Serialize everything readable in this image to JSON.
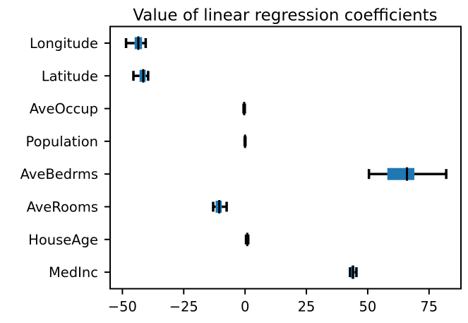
{
  "chart_data": {
    "type": "boxplot",
    "orientation": "horizontal",
    "title": "Value of linear regression coefficients",
    "xlabel": "",
    "ylabel": "",
    "xlim": [
      -55,
      88
    ],
    "xticks": [
      -50,
      -25,
      0,
      25,
      50,
      75
    ],
    "xtick_labels": [
      "−50",
      "−25",
      "0",
      "25",
      "50",
      "75"
    ],
    "grid": false,
    "legend": "none",
    "box_color": "#1f77b4",
    "median_color": "#000000",
    "whisker_color": "#000000",
    "categories": [
      "Longitude",
      "Latitude",
      "AveOccup",
      "Population",
      "AveBedrms",
      "AveRooms",
      "HouseAge",
      "MedInc"
    ],
    "boxes": [
      {
        "label": "Longitude",
        "whislo": -48.5,
        "q1": -45.0,
        "med": -43.5,
        "q3": -42.0,
        "whishi": -40.5
      },
      {
        "label": "Latitude",
        "whislo": -45.5,
        "q1": -43.0,
        "med": -41.5,
        "q3": -40.5,
        "whishi": -39.5
      },
      {
        "label": "AveOccup",
        "whislo": -0.6,
        "q1": -0.45,
        "med": -0.35,
        "q3": -0.25,
        "whishi": -0.1
      },
      {
        "label": "Population",
        "whislo": -0.15,
        "q1": -0.05,
        "med": 0.0,
        "q3": 0.05,
        "whishi": 0.15
      },
      {
        "label": "AveBedrms",
        "whislo": 50.5,
        "q1": 58.0,
        "med": 66.0,
        "q3": 69.0,
        "whishi": 82.0
      },
      {
        "label": "AveRooms",
        "whislo": -13.0,
        "q1": -12.0,
        "med": -10.5,
        "q3": -9.5,
        "whishi": -7.5
      },
      {
        "label": "HouseAge",
        "whislo": 0.4,
        "q1": 0.7,
        "med": 0.9,
        "q3": 1.1,
        "whishi": 1.3
      },
      {
        "label": "MedInc",
        "whislo": 42.8,
        "q1": 43.2,
        "med": 44.0,
        "q3": 44.6,
        "whishi": 45.4
      }
    ]
  }
}
